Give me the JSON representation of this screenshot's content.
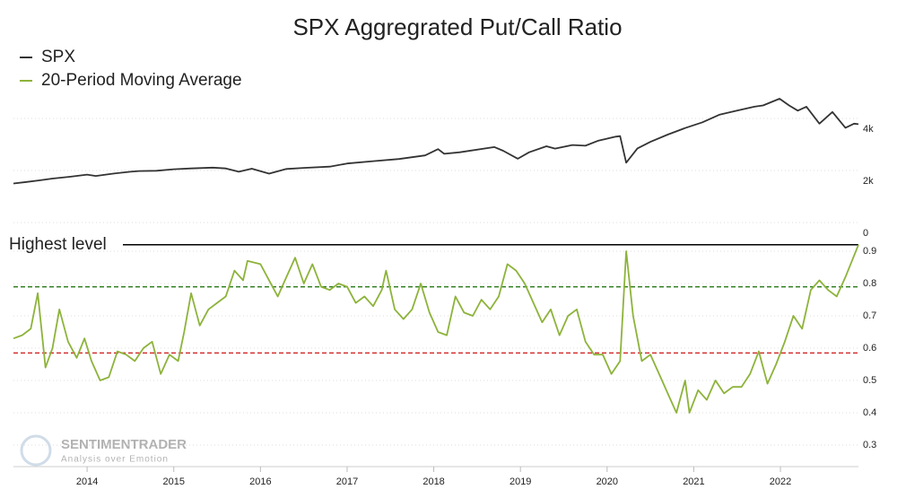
{
  "title": "SPX Aggregrated Put/Call Ratio",
  "watermark": {
    "name": "SENTIMENTRADER",
    "tagline": "Analysis over Emotion"
  },
  "chart_data": [
    {
      "type": "line",
      "x": [
        2013.15,
        2013.3,
        2013.45,
        2013.6,
        2013.8,
        2014.0,
        2014.1,
        2014.3,
        2014.5,
        2014.6,
        2014.8,
        2015.0,
        2015.2,
        2015.45,
        2015.6,
        2015.75,
        2015.9,
        2016.1,
        2016.3,
        2016.5,
        2016.8,
        2017.0,
        2017.3,
        2017.6,
        2017.9,
        2018.05,
        2018.12,
        2018.3,
        2018.7,
        2018.8,
        2018.97,
        2019.1,
        2019.3,
        2019.4,
        2019.6,
        2019.75,
        2019.9,
        2020.1,
        2020.15,
        2020.22,
        2020.35,
        2020.5,
        2020.7,
        2020.9,
        2021.1,
        2021.3,
        2021.5,
        2021.7,
        2021.8,
        2021.99,
        2022.1,
        2022.2,
        2022.3,
        2022.45,
        2022.6,
        2022.75,
        2022.85,
        2022.9
      ],
      "series": [
        {
          "name": "SPX",
          "color": "#333333",
          "values": [
            1500,
            1560,
            1620,
            1690,
            1760,
            1840,
            1790,
            1880,
            1950,
            1980,
            1990,
            2050,
            2080,
            2110,
            2080,
            1950,
            2070,
            1880,
            2060,
            2100,
            2150,
            2270,
            2360,
            2440,
            2580,
            2820,
            2640,
            2700,
            2900,
            2760,
            2450,
            2700,
            2930,
            2840,
            2980,
            2950,
            3150,
            3300,
            3320,
            2300,
            2850,
            3100,
            3380,
            3630,
            3850,
            4150,
            4300,
            4450,
            4500,
            4760,
            4500,
            4300,
            4450,
            3800,
            4250,
            3640,
            3800,
            3780
          ]
        }
      ],
      "xlim": [
        2013.15,
        2022.9
      ],
      "ylim": [
        0,
        5000
      ],
      "yticks": [
        {
          "value": 4000,
          "label": "4k"
        },
        {
          "value": 2000,
          "label": "2k"
        },
        0
      ]
    },
    {
      "type": "line",
      "x": [
        2013.15,
        2013.25,
        2013.35,
        2013.43,
        2013.52,
        2013.6,
        2013.68,
        2013.78,
        2013.88,
        2013.97,
        2014.05,
        2014.15,
        2014.25,
        2014.35,
        2014.45,
        2014.55,
        2014.65,
        2014.75,
        2014.85,
        2014.95,
        2015.05,
        2015.12,
        2015.2,
        2015.3,
        2015.4,
        2015.5,
        2015.6,
        2015.7,
        2015.8,
        2015.85,
        2016.0,
        2016.1,
        2016.2,
        2016.3,
        2016.4,
        2016.5,
        2016.6,
        2016.7,
        2016.8,
        2016.9,
        2017.0,
        2017.1,
        2017.2,
        2017.3,
        2017.4,
        2017.45,
        2017.55,
        2017.65,
        2017.75,
        2017.85,
        2017.95,
        2018.05,
        2018.15,
        2018.25,
        2018.35,
        2018.45,
        2018.55,
        2018.65,
        2018.75,
        2018.85,
        2018.95,
        2019.05,
        2019.15,
        2019.25,
        2019.35,
        2019.45,
        2019.55,
        2019.65,
        2019.75,
        2019.85,
        2019.95,
        2020.05,
        2020.15,
        2020.22,
        2020.3,
        2020.4,
        2020.5,
        2020.6,
        2020.7,
        2020.8,
        2020.9,
        2020.95,
        2021.05,
        2021.15,
        2021.25,
        2021.35,
        2021.45,
        2021.55,
        2021.65,
        2021.75,
        2021.85,
        2021.95,
        2022.05,
        2022.15,
        2022.25,
        2022.35,
        2022.45,
        2022.55,
        2022.65,
        2022.75,
        2022.9
      ],
      "series": [
        {
          "name": "20-Period Moving Average",
          "color": "#8db33a",
          "values": [
            0.63,
            0.64,
            0.66,
            0.77,
            0.54,
            0.6,
            0.72,
            0.62,
            0.57,
            0.63,
            0.56,
            0.5,
            0.51,
            0.59,
            0.58,
            0.56,
            0.6,
            0.62,
            0.52,
            0.58,
            0.56,
            0.65,
            0.77,
            0.67,
            0.72,
            0.74,
            0.76,
            0.84,
            0.81,
            0.87,
            0.86,
            0.81,
            0.76,
            0.82,
            0.88,
            0.8,
            0.86,
            0.79,
            0.78,
            0.8,
            0.79,
            0.74,
            0.76,
            0.73,
            0.78,
            0.84,
            0.72,
            0.69,
            0.72,
            0.8,
            0.71,
            0.65,
            0.64,
            0.76,
            0.71,
            0.7,
            0.75,
            0.72,
            0.76,
            0.86,
            0.84,
            0.8,
            0.74,
            0.68,
            0.72,
            0.64,
            0.7,
            0.72,
            0.62,
            0.58,
            0.58,
            0.52,
            0.56,
            0.9,
            0.7,
            0.56,
            0.58,
            0.52,
            0.46,
            0.4,
            0.5,
            0.4,
            0.47,
            0.44,
            0.5,
            0.46,
            0.48,
            0.48,
            0.52,
            0.59,
            0.49,
            0.55,
            0.62,
            0.7,
            0.66,
            0.78,
            0.81,
            0.78,
            0.76,
            0.82,
            0.92
          ]
        }
      ],
      "xlim": [
        2013.15,
        2022.9
      ],
      "xticks": [
        2014,
        2015,
        2016,
        2017,
        2018,
        2019,
        2020,
        2021,
        2022
      ],
      "ylim": [
        0.25,
        0.95
      ],
      "yticks": [
        0.3,
        0.4,
        0.5,
        0.6,
        0.7,
        0.8,
        0.9
      ],
      "reference_lines": [
        {
          "value": 0.92,
          "color": "#000000",
          "label": "Highest level"
        },
        {
          "value": 0.79,
          "color": "#2e7d1e",
          "dashed": true
        },
        {
          "value": 0.585,
          "color": "#d32f2f",
          "dashed": true
        }
      ]
    }
  ]
}
